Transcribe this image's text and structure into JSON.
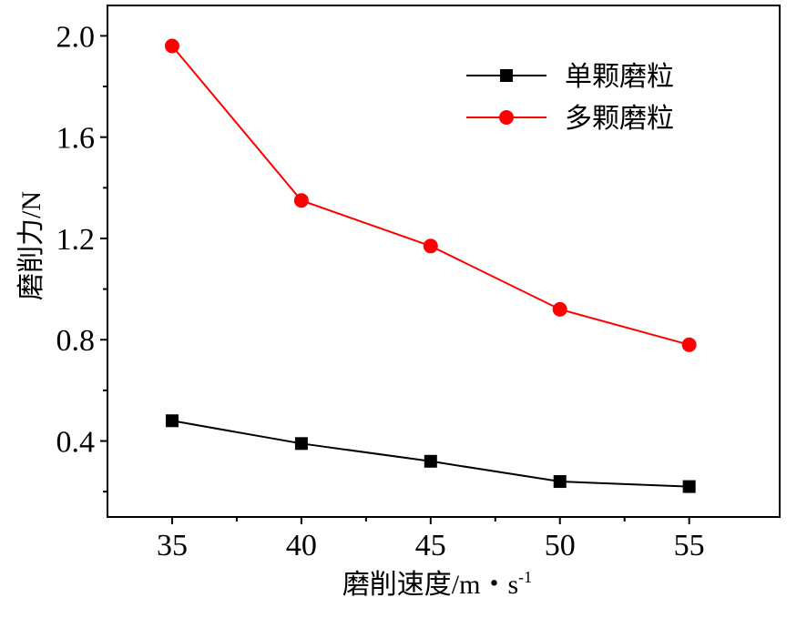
{
  "chart_data": {
    "type": "line",
    "xlabel": "磨削速度/m・s",
    "xlabel_sup": "-1",
    "ylabel": "磨削力/N",
    "x": [
      35,
      40,
      45,
      50,
      55
    ],
    "x_tick_labels": [
      "35",
      "40",
      "45",
      "50",
      "55"
    ],
    "y_tick_labels": [
      "0.4",
      "0.8",
      "1.2",
      "1.6",
      "2.0"
    ],
    "y_ticks": [
      0.4,
      0.8,
      1.2,
      1.6,
      2.0
    ],
    "xlim": [
      32.5,
      58.5
    ],
    "ylim": [
      0.1,
      2.12
    ],
    "grid": false,
    "legend_position": "top-right",
    "series": [
      {
        "name": "单颗磨粒",
        "color": "#000000",
        "marker": "square",
        "values": [
          0.48,
          0.39,
          0.32,
          0.24,
          0.22
        ]
      },
      {
        "name": "多颗磨粒",
        "color": "#ff0000",
        "marker": "circle",
        "values": [
          1.96,
          1.35,
          1.17,
          0.92,
          0.78
        ]
      }
    ]
  }
}
